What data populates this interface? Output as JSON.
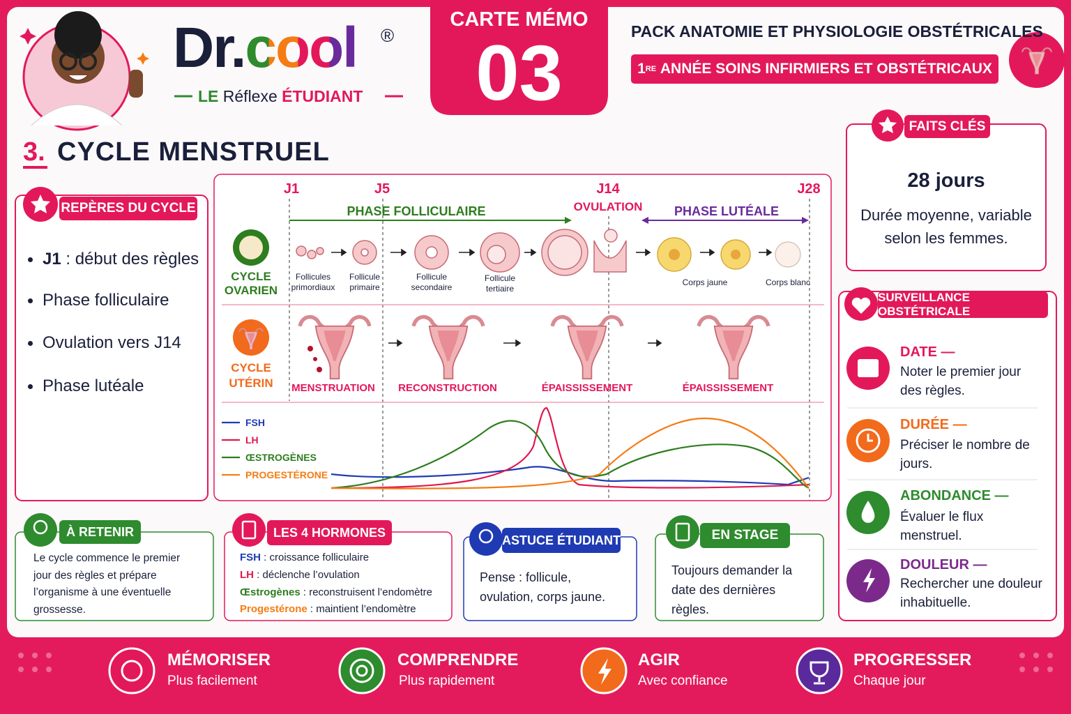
{
  "header": {
    "brand": "Dr.cool",
    "registered": "®",
    "tagline": [
      "LE",
      "Réflexe",
      "ÉTUDIANT"
    ],
    "memo_label": "CARTE MÉMO",
    "memo_number": "03",
    "pack": "PACK ANATOMIE ET PHYSIOLOGIE OBSTÉTRICALES",
    "year_number": "1",
    "year_suffix": "RE",
    "year_text": "ANNÉE SOINS INFIRMIERS ET OBSTÉTRICAUX"
  },
  "section": {
    "number": "3.",
    "title": "CYCLE MENSTRUEL"
  },
  "reperes": {
    "title": "REPÈRES DU CYCLE",
    "items": [
      {
        "key": "J1",
        "text": ": début des règles"
      },
      {
        "text": "Phase folliculaire"
      },
      {
        "text": "Ovulation vers J14"
      },
      {
        "text": "Phase lutéale"
      }
    ]
  },
  "cycle": {
    "days": [
      "J1",
      "J5",
      "J14",
      "J28"
    ],
    "follicular": "PHASE FOLLICULAIRE",
    "ovulation": "OVULATION",
    "luteal": "PHASE LUTÉALE",
    "ovarian_label": [
      "CYCLE",
      "OVARIEN"
    ],
    "ovarian_stages": [
      "Follicules primordiaux",
      "Follicule primaire",
      "Follicule secondaire",
      "Follicule tertiaire",
      "Corps jaune",
      "Corps blanc"
    ],
    "uterine_label": [
      "CYCLE",
      "UTÉRIN"
    ],
    "uterine_stages": [
      "MENSTRUATION",
      "RECONSTRUCTION",
      "ÉPAISSISSEMENT",
      "ÉPAISSISSEMENT"
    ],
    "hormones": [
      {
        "name": "FSH",
        "color": "#1f3bb3"
      },
      {
        "name": "LH",
        "color": "#e0184f"
      },
      {
        "name": "ŒSTROGÈNES",
        "color": "#2e7d1f"
      },
      {
        "name": "PROGESTÉRONE",
        "color": "#f57c14"
      }
    ]
  },
  "faits_cles": {
    "title": "FAITS CLÉS",
    "headline": "28 jours",
    "text": "Durée moyenne, variable selon les femmes."
  },
  "surveillance": {
    "title": "SURVEILLANCE OBSTÉTRICALE",
    "items": [
      {
        "title": "DATE —",
        "text": "Noter le premier jour des règles.",
        "color": "#e3185b"
      },
      {
        "title": "DURÉE —",
        "text": "Préciser le nombre de jours.",
        "color": "#f26a1b"
      },
      {
        "title": "ABONDANCE —",
        "text": "Évaluer le flux menstruel.",
        "color": "#2e8b2e"
      },
      {
        "title": "DOULEUR —",
        "text": "Rechercher une douleur inhabituelle.",
        "color": "#7b2a8c"
      }
    ]
  },
  "a_retenir": {
    "title": "À RETENIR",
    "text": "Le cycle commence le premier jour des règles et prépare l’organisme à une éventuelle grossesse."
  },
  "hormones_box": {
    "title": "LES 4 HORMONES",
    "rows": [
      {
        "name": "FSH",
        "text": ": croissance folliculaire",
        "color": "#1f3bb3"
      },
      {
        "name": "LH",
        "text": ": déclenche l’ovulation",
        "color": "#e0184f"
      },
      {
        "name": "Œstrogènes",
        "text": ": reconstruisent l’endomètre",
        "color": "#2e7d1f"
      },
      {
        "name": "Progestérone",
        "text": ": maintient l’endomètre",
        "color": "#f57c14"
      }
    ]
  },
  "astuce": {
    "title": "ASTUCE ÉTUDIANT",
    "text": "Pense : follicule, ovulation, corps jaune."
  },
  "stage": {
    "title": "EN STAGE",
    "text": "Toujours demander la date des dernières règles."
  },
  "footer": [
    {
      "title": "MÉMORISER",
      "text": "Plus facilement",
      "color": "#e3185b"
    },
    {
      "title": "COMPRENDRE",
      "text": "Plus rapidement",
      "color": "#2e8b2e"
    },
    {
      "title": "AGIR",
      "text": "Avec confiance",
      "color": "#f26a1b"
    },
    {
      "title": "PROGRESSER",
      "text": "Chaque jour",
      "color": "#5a2a9c"
    }
  ]
}
